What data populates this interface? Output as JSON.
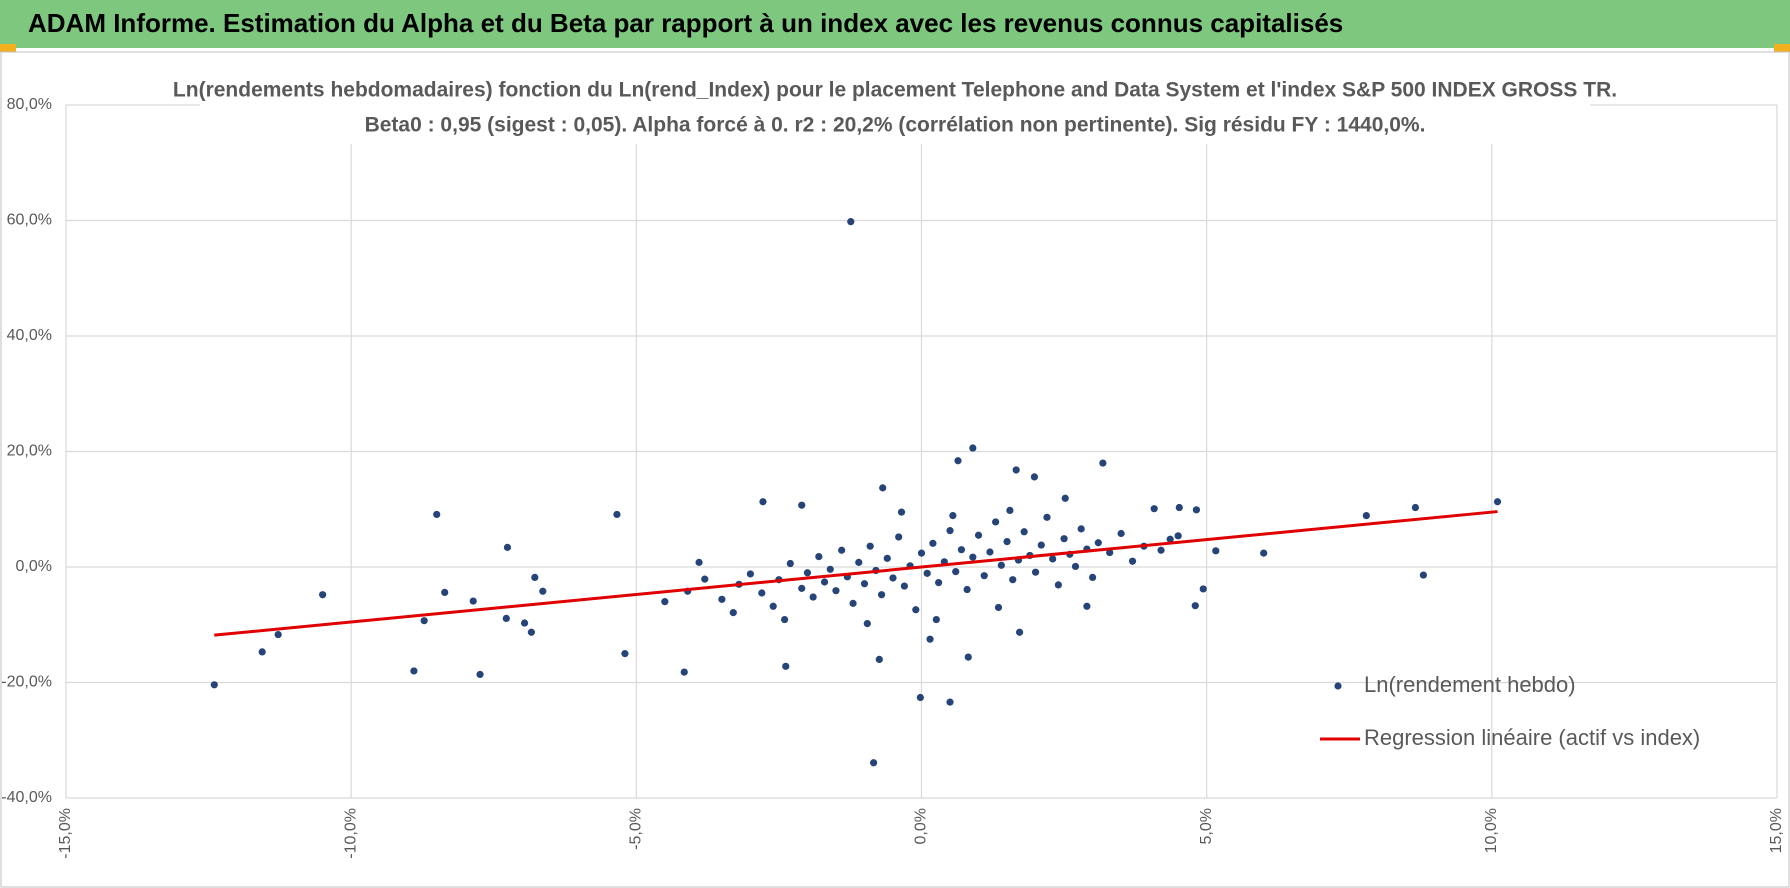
{
  "header": {
    "title": "ADAM Informe. Estimation du Alpha et du Beta par rapport à un index avec les revenus connus capitalisés"
  },
  "chart_data": {
    "type": "scatter",
    "title": "Ln(rendements hebdomadaires) fonction du Ln(rend_Index) pour le placement Telephone and Data System et l'index S&P 500 INDEX GROSS TR.",
    "subtitle": "Beta0 : 0,95 (sigest : 0,05).  Alpha forcé à 0. r2 : 20,2% (corrélation non pertinente). Sig résidu FY : 1440,0%.",
    "xlim": [
      -15,
      15
    ],
    "xticks": [
      {
        "value": -15,
        "label": "-15,0%"
      },
      {
        "value": -10,
        "label": "-10,0%"
      },
      {
        "value": -5,
        "label": "-5,0%"
      },
      {
        "value": 0,
        "label": "0,0%"
      },
      {
        "value": 5,
        "label": "5,0%"
      },
      {
        "value": 10,
        "label": "10,0%"
      },
      {
        "value": 15,
        "label": "15,0%"
      }
    ],
    "ylim": [
      -40,
      80
    ],
    "yticks": [
      {
        "value": -40,
        "label": "-40,0%"
      },
      {
        "value": -20,
        "label": "-20,0%"
      },
      {
        "value": 0,
        "label": "0,0%"
      },
      {
        "value": 20,
        "label": "20,0%"
      },
      {
        "value": 40,
        "label": "40,0%"
      },
      {
        "value": 60,
        "label": "60,0%"
      },
      {
        "value": 80,
        "label": "80,0%"
      }
    ],
    "grid": true,
    "legend": "lower right",
    "series": [
      {
        "name": "Ln(rendement hebdo)",
        "color": "#264478",
        "type": "scatter",
        "x": [
          -1.24,
          -12.4,
          -11.56,
          -11.28,
          -10.5,
          -8.5,
          -8.36,
          -8.72,
          -8.9,
          -7.86,
          -7.74,
          -7.26,
          -7.28,
          -6.96,
          -6.78,
          -6.84,
          -6.64,
          -5.34,
          -5.2,
          -4.16,
          -2.38,
          -2.78,
          -2.1,
          -0.68,
          -0.74,
          -0.84,
          -0.02,
          0.5,
          0.26,
          0.82,
          0.9,
          0.64,
          1.66,
          1.98,
          3.18,
          1.72,
          4.08,
          4.52,
          4.82,
          4.8,
          4.94,
          5.16,
          6.0,
          7.8,
          8.66,
          8.8,
          10.1,
          2.52,
          4.36,
          -4.1,
          -3.8,
          -3.5,
          -3.2,
          -3.0,
          -2.8,
          -2.6,
          -2.5,
          -2.3,
          -2.1,
          -2.0,
          -1.9,
          -1.8,
          -1.7,
          -1.6,
          -1.5,
          -1.4,
          -1.3,
          -1.2,
          -1.1,
          -1.0,
          -0.9,
          -0.8,
          -0.7,
          -0.6,
          -0.5,
          -0.4,
          -0.3,
          -0.2,
          -0.1,
          0.0,
          0.1,
          0.2,
          0.3,
          0.4,
          0.5,
          0.6,
          0.7,
          0.8,
          0.9,
          1.0,
          1.1,
          1.2,
          1.3,
          1.4,
          1.5,
          1.6,
          1.7,
          1.8,
          1.9,
          2.0,
          2.1,
          2.2,
          2.3,
          2.4,
          2.5,
          2.6,
          2.7,
          2.8,
          2.9,
          3.0,
          3.1,
          3.3,
          3.5,
          3.7,
          3.9,
          4.2,
          4.5,
          -4.5,
          -3.9,
          -3.3,
          -0.95,
          0.15,
          1.35,
          -2.4,
          2.9,
          0.55,
          -0.35,
          1.55
        ],
        "values": [
          59.8,
          -20.4,
          -14.7,
          -11.7,
          -4.8,
          9.1,
          -4.4,
          -9.3,
          -18.0,
          -5.9,
          -18.6,
          3.4,
          -8.9,
          -9.7,
          -1.8,
          -11.3,
          -4.2,
          9.1,
          -15.0,
          -18.2,
          -17.2,
          11.3,
          10.7,
          13.7,
          -16.0,
          -33.9,
          -22.6,
          -23.4,
          -9.1,
          -15.6,
          20.6,
          18.4,
          16.8,
          15.6,
          18.0,
          -11.3,
          10.1,
          10.3,
          9.9,
          -6.7,
          -3.8,
          2.8,
          2.4,
          8.9,
          10.3,
          -1.4,
          11.3,
          11.9,
          4.8,
          -4.2,
          -2.1,
          -5.6,
          -3.0,
          -1.2,
          -4.5,
          -6.8,
          -2.2,
          0.6,
          -3.7,
          -1.0,
          -5.2,
          1.8,
          -2.6,
          -0.4,
          -4.1,
          2.9,
          -1.7,
          -6.3,
          0.8,
          -2.9,
          3.6,
          -0.6,
          -4.8,
          1.5,
          -1.9,
          5.2,
          -3.3,
          0.2,
          -7.4,
          2.4,
          -1.1,
          4.1,
          -2.7,
          0.9,
          6.3,
          -0.8,
          3.0,
          -3.9,
          1.7,
          5.5,
          -1.5,
          2.6,
          7.8,
          0.3,
          4.4,
          -2.2,
          1.2,
          6.1,
          2.0,
          -0.9,
          3.8,
          8.6,
          1.4,
          -3.1,
          4.9,
          2.2,
          0.1,
          6.6,
          3.1,
          -1.8,
          4.2,
          2.5,
          5.8,
          1.0,
          3.6,
          2.9,
          5.4,
          -6.0,
          0.8,
          -7.9,
          -9.8,
          -12.5,
          -7.0,
          -9.1,
          -6.8,
          8.9,
          9.5,
          9.8
        ]
      },
      {
        "name": "Regression linéaire (actif vs index)",
        "color": "#e00000",
        "type": "line",
        "x": [
          -12.4,
          10.1
        ],
        "values": [
          -11.8,
          9.6
        ]
      }
    ]
  }
}
